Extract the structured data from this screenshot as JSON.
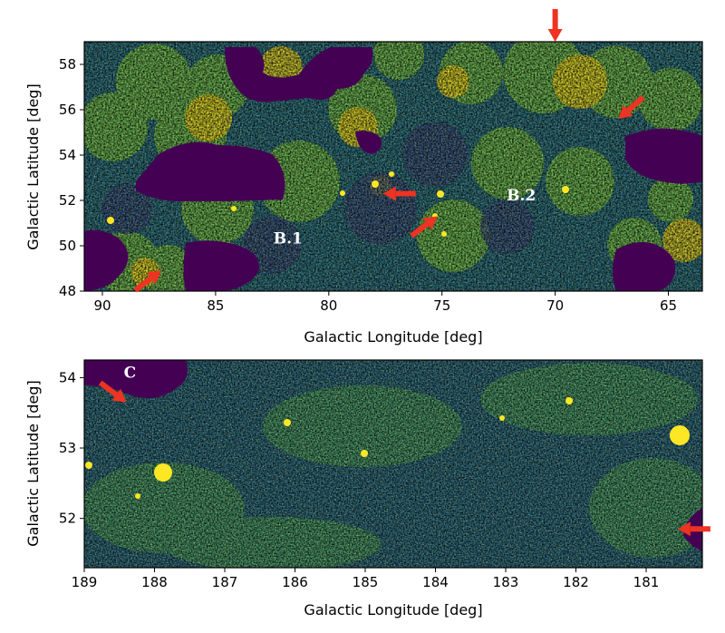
{
  "chart_data": [
    {
      "type": "heatmap",
      "id": "top",
      "xlabel": "Galactic Longitude [deg]",
      "ylabel": "Galactic Latitude [deg]",
      "xlim": [
        90.8,
        63.5
      ],
      "ylim": [
        48.0,
        59.0
      ],
      "x_inverted": true,
      "x_ticks": [
        {
          "value": 90,
          "label": "90"
        },
        {
          "value": 85,
          "label": "85"
        },
        {
          "value": 80,
          "label": "80"
        },
        {
          "value": 75,
          "label": "75"
        },
        {
          "value": 70,
          "label": "70"
        },
        {
          "value": 65,
          "label": "65"
        }
      ],
      "y_ticks": [
        {
          "value": 48,
          "label": "48"
        },
        {
          "value": 50,
          "label": "50"
        },
        {
          "value": 52,
          "label": "52"
        },
        {
          "value": 54,
          "label": "54"
        },
        {
          "value": 56,
          "label": "56"
        },
        {
          "value": 58,
          "label": "58"
        }
      ],
      "colormap": "viridis",
      "colors": {
        "low": "#440154",
        "mid": "#21918c",
        "high": "#fde725"
      },
      "annotations": [
        {
          "label": "B.1",
          "x": 81.8,
          "y": 50.1
        },
        {
          "label": "B.2",
          "x": 71.5,
          "y": 52.0
        }
      ],
      "arrows": [
        {
          "x": 70.0,
          "y": 59.0,
          "direction": "down"
        },
        {
          "x": 67.2,
          "y": 55.6,
          "direction": "down-left"
        },
        {
          "x": 77.6,
          "y": 52.3,
          "direction": "left"
        },
        {
          "x": 75.2,
          "y": 51.3,
          "direction": "up-right"
        },
        {
          "x": 87.4,
          "y": 48.9,
          "direction": "up-right"
        }
      ]
    },
    {
      "type": "heatmap",
      "id": "bottom",
      "xlabel": "Galactic Longitude [deg]",
      "ylabel": "Galactic Latitude [deg]",
      "xlim": [
        189.0,
        180.2
      ],
      "ylim": [
        51.3,
        54.25
      ],
      "x_inverted": true,
      "x_ticks": [
        {
          "value": 189,
          "label": "189"
        },
        {
          "value": 188,
          "label": "188"
        },
        {
          "value": 187,
          "label": "187"
        },
        {
          "value": 186,
          "label": "186"
        },
        {
          "value": 185,
          "label": "185"
        },
        {
          "value": 184,
          "label": "184"
        },
        {
          "value": 183,
          "label": "183"
        },
        {
          "value": 182,
          "label": "182"
        },
        {
          "value": 181,
          "label": "181"
        }
      ],
      "y_ticks": [
        {
          "value": 52,
          "label": "52"
        },
        {
          "value": 53,
          "label": "53"
        },
        {
          "value": 54,
          "label": "54"
        }
      ],
      "colormap": "viridis",
      "colors": {
        "low": "#440154",
        "mid": "#21918c",
        "high": "#fde725"
      },
      "annotations": [
        {
          "label": "C",
          "x": 188.35,
          "y": 54.0
        }
      ],
      "arrows": [
        {
          "x": 188.4,
          "y": 53.65,
          "direction": "down-right"
        },
        {
          "x": 180.55,
          "y": 51.85,
          "direction": "left"
        }
      ]
    }
  ]
}
